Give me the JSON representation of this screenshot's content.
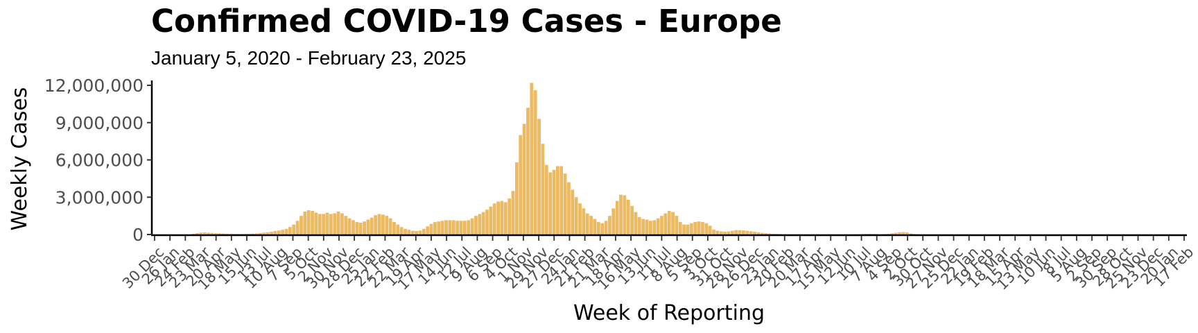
{
  "chart_data": {
    "type": "bar",
    "title": "Confirmed COVID-19 Cases - Europe",
    "subtitle": "January 5, 2020 - February 23, 2025",
    "xlabel": "Week of Reporting",
    "ylabel": "Weekly Cases",
    "ylim": [
      0,
      12000000
    ],
    "y_ticks": [
      "0",
      "3,000,000",
      "6,000,000",
      "9,000,000",
      "12,000,000"
    ],
    "y_tick_values": [
      0,
      3000000,
      6000000,
      9000000,
      12000000
    ],
    "x_tick_labels": [
      "30 Dec",
      "26 Jan",
      "24 Feb",
      "23 Mar",
      "20 Apr",
      "18 May",
      "15 Jun",
      "13 Jul",
      "10 Aug",
      "7 Sep",
      "5 Oct",
      "2 Nov",
      "30 Nov",
      "28 Dec",
      "25 Jan",
      "22 Feb",
      "22 Mar",
      "19 Apr",
      "17 May",
      "14 Jun",
      "12 Jul",
      "9 Aug",
      "6 Sep",
      "4 Oct",
      "1 Nov",
      "29 Nov",
      "27 Dec",
      "24 Jan",
      "21 Feb",
      "21 Mar",
      "18 Apr",
      "16 May",
      "13 Jun",
      "11 Jul",
      "8 Aug",
      "5 Sep",
      "3 Oct",
      "31 Oct",
      "28 Nov",
      "26 Dec",
      "23 Jan",
      "20 Feb",
      "20 Mar",
      "17 Apr",
      "15 May",
      "12 Jun",
      "10 Jul",
      "7 Aug",
      "4 Sep",
      "2 Oct",
      "30 Oct",
      "27 Nov",
      "25 Dec",
      "22 Jan",
      "19 Feb",
      "18 Mar",
      "15 Apr",
      "13 May",
      "10 Jun",
      "8 Jul",
      "5 Aug",
      "2 Sep",
      "30 Sep",
      "28 Oct",
      "25 Nov",
      "23 Dec",
      "20 Jan",
      "17 Feb"
    ],
    "bar_color": "#EBBA63",
    "grid": false,
    "legend": "none",
    "series": [
      {
        "values": [
          0,
          0,
          0,
          0,
          0,
          0,
          0,
          0,
          0,
          0,
          60000,
          110000,
          150000,
          160000,
          140000,
          120000,
          100000,
          90000,
          80000,
          70000,
          60000,
          50000,
          50000,
          50000,
          50000,
          60000,
          70000,
          90000,
          120000,
          150000,
          180000,
          220000,
          280000,
          320000,
          380000,
          450000,
          600000,
          800000,
          1100000,
          1500000,
          1850000,
          1950000,
          1900000,
          1750000,
          1650000,
          1650000,
          1750000,
          1650000,
          1700000,
          1850000,
          1700000,
          1500000,
          1300000,
          1150000,
          1000000,
          950000,
          1050000,
          1200000,
          1350000,
          1550000,
          1650000,
          1600000,
          1500000,
          1300000,
          1000000,
          800000,
          600000,
          450000,
          380000,
          300000,
          280000,
          320000,
          450000,
          650000,
          850000,
          1000000,
          1050000,
          1100000,
          1150000,
          1150000,
          1150000,
          1100000,
          1100000,
          1100000,
          1150000,
          1300000,
          1500000,
          1650000,
          1800000,
          2000000,
          2250000,
          2500000,
          2650000,
          2700000,
          2600000,
          2900000,
          3500000,
          5800000,
          8000000,
          8900000,
          10200000,
          12200000,
          11600000,
          9300000,
          7300000,
          5600000,
          5000000,
          5200000,
          5500000,
          5500000,
          4900000,
          4200000,
          3600000,
          3000000,
          2500000,
          2100000,
          1700000,
          1500000,
          1250000,
          1000000,
          900000,
          1100000,
          1500000,
          2100000,
          2700000,
          3200000,
          3150000,
          2800000,
          2300000,
          1800000,
          1400000,
          1250000,
          1200000,
          1100000,
          1150000,
          1300000,
          1500000,
          1700000,
          1900000,
          1800000,
          1500000,
          1000000,
          800000,
          800000,
          900000,
          1000000,
          1050000,
          1000000,
          900000,
          700000,
          400000,
          300000,
          250000,
          230000,
          250000,
          300000,
          350000,
          350000,
          330000,
          300000,
          260000,
          220000,
          180000,
          130000,
          100000,
          80000,
          60000,
          50000,
          40000,
          30000,
          25000,
          20000,
          20000,
          20000,
          20000,
          20000,
          20000,
          20000,
          20000,
          20000,
          20000,
          20000,
          20000,
          20000,
          20000,
          20000,
          20000,
          20000,
          20000,
          30000,
          40000,
          50000,
          60000,
          50000,
          40000,
          30000,
          40000,
          60000,
          100000,
          140000,
          180000,
          200000,
          160000,
          80000,
          40000,
          20000,
          10000,
          8000,
          6000,
          5000,
          5000,
          5000,
          4000,
          4000,
          4000,
          4000,
          4000,
          4000,
          4000,
          4000,
          4000,
          4000,
          4000,
          4000,
          4000,
          4000,
          4000,
          4000,
          4000,
          4000,
          4000,
          4000,
          4000,
          4000,
          4000,
          4000,
          4000,
          4000,
          4000,
          4000,
          4000,
          4000,
          4000,
          4000,
          4000,
          4000,
          4000,
          4000,
          4000,
          4000,
          4000,
          4000,
          4000,
          4000,
          4000,
          4000,
          4000,
          4000,
          4000,
          4000,
          4000,
          4000,
          4000,
          4000,
          4000,
          4000,
          4000,
          4000,
          4000,
          4000,
          4000,
          4000,
          4000,
          4000,
          4000,
          4000,
          4000
        ]
      }
    ]
  }
}
